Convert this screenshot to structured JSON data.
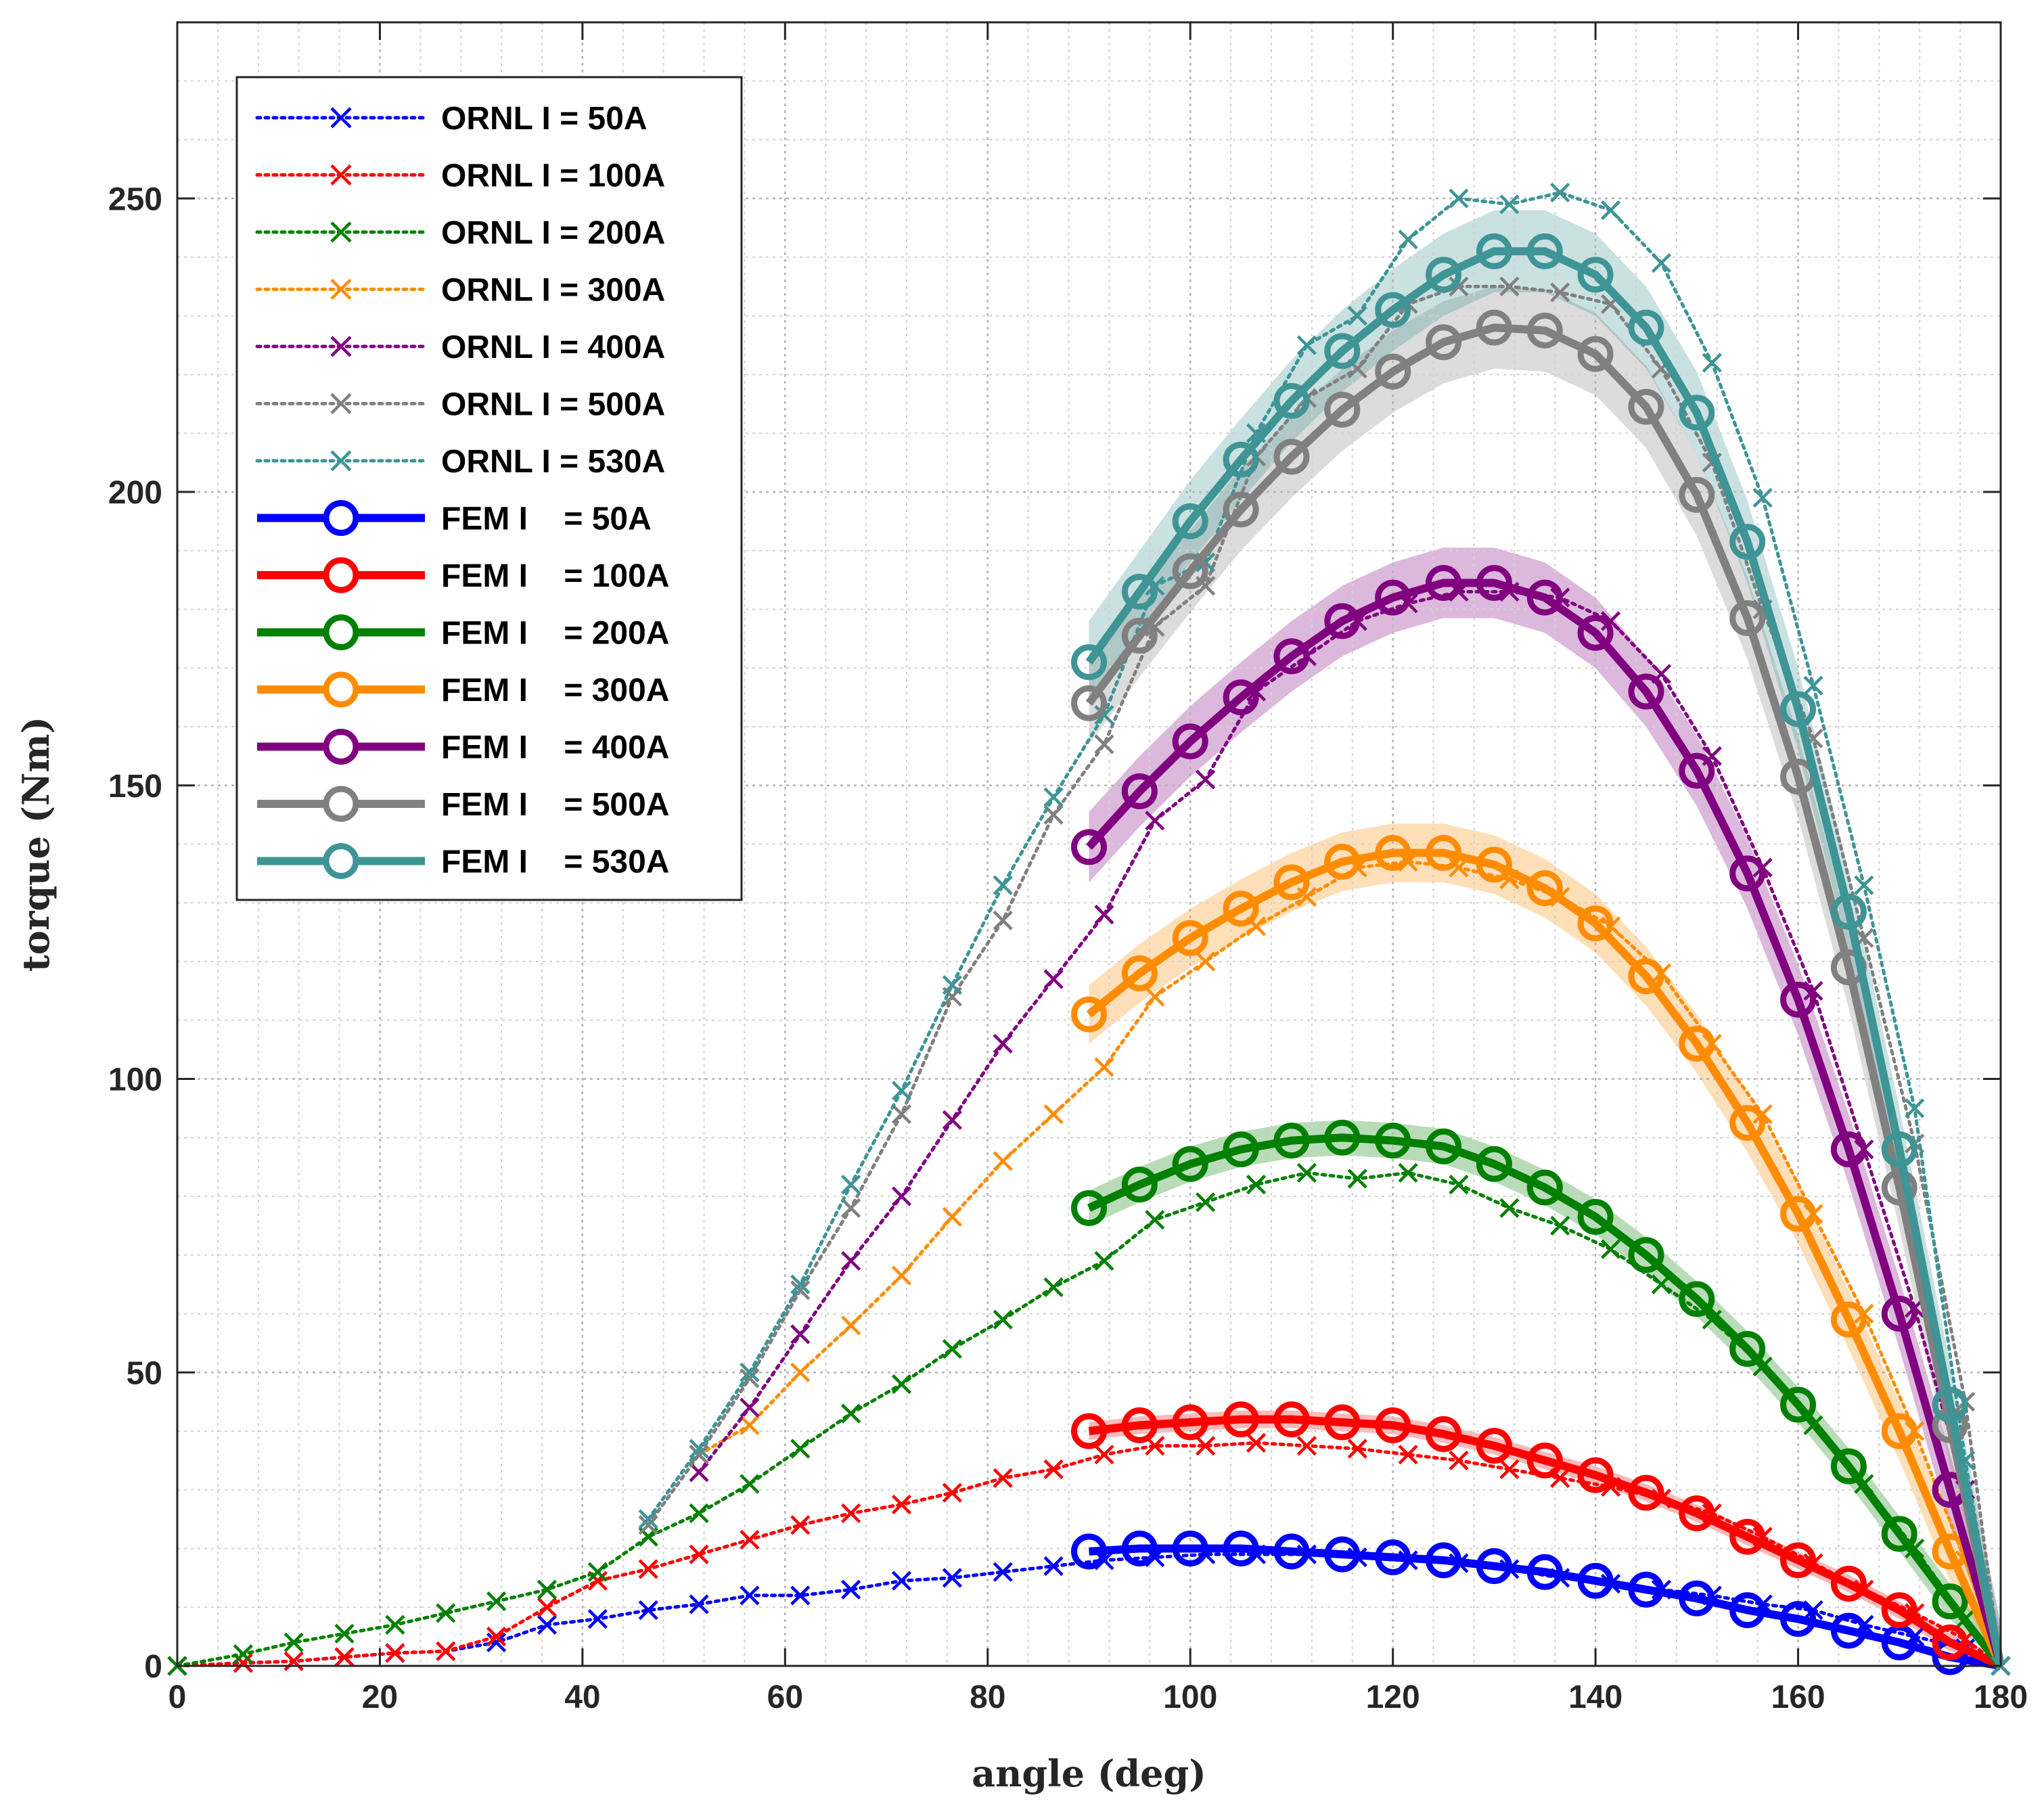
{
  "chart_data": {
    "type": "line",
    "xlabel": "angle (deg)",
    "ylabel": "torque (Nm)",
    "xlim": [
      0,
      180
    ],
    "ylim": [
      0,
      280
    ],
    "xticks": [
      0,
      20,
      40,
      60,
      80,
      100,
      120,
      140,
      160,
      180
    ],
    "yticks": [
      0,
      50,
      100,
      150,
      200,
      250
    ],
    "xtick_labels": [
      "0",
      "20",
      "40",
      "60",
      "80",
      "100",
      "120",
      "140",
      "160",
      "180"
    ],
    "ytick_labels": [
      "0",
      "50",
      "100",
      "150",
      "200",
      "250"
    ],
    "grid": true,
    "minor_grid": true,
    "legend_position": "top-left",
    "ornl_series": [
      {
        "name": "ORNL I = 50A",
        "color": "#0000ff",
        "x": [
          0,
          6.5,
          11.5,
          16.5,
          21.5,
          26.5,
          31.5,
          36.5,
          41.5,
          46.5,
          51.5,
          56.5,
          61.5,
          66.5,
          71.5,
          76.5,
          81.5,
          86.5,
          91.5,
          96.5,
          101.5,
          106.5,
          111.5,
          116.5,
          121.5,
          126.5,
          131.5,
          136.5,
          141.5,
          146.5,
          151.5,
          156.5,
          161.5,
          166.5,
          171.5,
          176.5,
          180
        ],
        "y": [
          0,
          0.5,
          0.8,
          1.5,
          2.2,
          2.5,
          4,
          7,
          8,
          9.5,
          10.5,
          12,
          12,
          13,
          14.5,
          15,
          16,
          17,
          18,
          18.5,
          19,
          19,
          19,
          18.5,
          18,
          17.5,
          16.5,
          15,
          14,
          13,
          12,
          10.5,
          9.5,
          7,
          5,
          3,
          0
        ]
      },
      {
        "name": "ORNL I = 100A",
        "color": "#ff0000",
        "x": [
          0,
          6.5,
          11.5,
          16.5,
          21.5,
          26.5,
          31.5,
          36.5,
          41.5,
          46.5,
          51.5,
          56.5,
          61.5,
          66.5,
          71.5,
          76.5,
          81.5,
          86.5,
          91.5,
          96.5,
          101.5,
          106.5,
          111.5,
          116.5,
          121.5,
          126.5,
          131.5,
          136.5,
          141.5,
          146.5,
          151.5,
          156.5,
          161.5,
          166.5,
          171.5,
          176.5,
          180
        ],
        "y": [
          0,
          0.5,
          0.8,
          1.5,
          2.2,
          2.5,
          5,
          10,
          14.5,
          16.5,
          19,
          21.5,
          24,
          26,
          27.5,
          29.5,
          32,
          33.5,
          36,
          37.5,
          37.5,
          38,
          37.5,
          37,
          36,
          35,
          33.5,
          32,
          30.5,
          28.5,
          26,
          22,
          17.5,
          13,
          9,
          4.5,
          0
        ]
      },
      {
        "name": "ORNL I = 200A",
        "color": "#008000",
        "x": [
          0,
          6.5,
          11.5,
          16.5,
          21.5,
          26.5,
          31.5,
          36.5,
          41.5,
          46.5,
          51.5,
          56.5,
          61.5,
          66.5,
          71.5,
          76.5,
          81.5,
          86.5,
          91.5,
          96.5,
          101.5,
          106.5,
          111.5,
          116.5,
          121.5,
          126.5,
          131.5,
          136.5,
          141.5,
          146.5,
          151.5,
          156.5,
          161.5,
          166.5,
          171.5,
          176.5,
          180
        ],
        "y": [
          0,
          2,
          4,
          5.5,
          7,
          9,
          11,
          13,
          16,
          22,
          26,
          31,
          37,
          43,
          48,
          54,
          59,
          64.5,
          69,
          76,
          79,
          82,
          84,
          83,
          84,
          82,
          78,
          75,
          71,
          65,
          59,
          51,
          41,
          31,
          20,
          8,
          0
        ]
      },
      {
        "name": "ORNL I = 300A",
        "color": "#ff8c00",
        "x": [
          51.5,
          56.5,
          61.5,
          66.5,
          71.5,
          76.5,
          81.5,
          86.5,
          91.5,
          96.5,
          101.5,
          106.5,
          111.5,
          116.5,
          121.5,
          126.5,
          131.5,
          136.5,
          141.5,
          146.5,
          151.5,
          156.5,
          161.5,
          166.5,
          171.5,
          176.5,
          180
        ],
        "y": [
          36,
          41,
          50,
          58,
          66.5,
          76.5,
          86,
          94,
          102,
          114,
          120,
          126,
          131,
          136,
          137,
          136,
          134,
          131,
          126,
          118,
          106,
          94,
          77,
          60,
          40,
          18,
          0
        ]
      },
      {
        "name": "ORNL I = 400A",
        "color": "#800080",
        "x": [
          51.5,
          56.5,
          61.5,
          66.5,
          71.5,
          76.5,
          81.5,
          86.5,
          91.5,
          96.5,
          101.5,
          106.5,
          111.5,
          116.5,
          121.5,
          126.5,
          131.5,
          136.5,
          141.5,
          146.5,
          151.5,
          156.5,
          161.5,
          166.5,
          171.5,
          176.5,
          180
        ],
        "y": [
          33,
          44,
          56.5,
          69,
          80,
          93,
          106,
          117,
          128,
          144,
          151,
          166,
          172,
          178,
          181,
          183,
          183,
          182,
          178,
          169,
          155,
          136,
          115,
          88,
          61,
          30,
          0
        ]
      },
      {
        "name": "ORNL I = 500A",
        "color": "#808080",
        "x": [
          46.5,
          51.5,
          56.5,
          61.5,
          66.5,
          71.5,
          76.5,
          81.5,
          86.5,
          91.5,
          96.5,
          101.5,
          106.5,
          111.5,
          116.5,
          121.5,
          126.5,
          131.5,
          136.5,
          141.5,
          146.5,
          151.5,
          156.5,
          161.5,
          166.5,
          171.5,
          176.5,
          180
        ],
        "y": [
          24,
          36,
          49,
          64,
          78,
          94,
          114,
          127,
          145,
          157,
          177,
          184,
          206,
          216,
          221,
          232,
          235,
          235,
          234,
          232,
          221,
          205,
          180,
          158,
          124,
          89,
          45,
          0
        ]
      },
      {
        "name": "ORNL I = 530A",
        "color": "#3f9495",
        "x": [
          46.5,
          51.5,
          56.5,
          61.5,
          66.5,
          71.5,
          76.5,
          81.5,
          86.5,
          91.5,
          96.5,
          101.5,
          106.5,
          111.5,
          116.5,
          121.5,
          126.5,
          131.5,
          136.5,
          141.5,
          146.5,
          151.5,
          156.5,
          161.5,
          166.5,
          171.5,
          176.5,
          180
        ],
        "y": [
          25,
          37,
          50,
          65,
          82,
          98,
          116,
          133,
          148,
          162,
          184,
          188,
          210,
          225,
          230,
          243,
          250,
          249,
          251,
          248,
          239,
          222,
          199,
          167,
          133,
          95,
          35,
          0
        ]
      }
    ],
    "fem_series": [
      {
        "name": "FEM I    = 50A",
        "color": "#0000ff",
        "band": 0,
        "x": [
          90,
          95,
          100,
          105,
          110,
          115,
          120,
          125,
          130,
          135,
          140,
          145,
          150,
          155,
          160,
          165,
          170,
          175,
          180
        ],
        "y": [
          19.5,
          20,
          20,
          20,
          19.5,
          19,
          18.5,
          18,
          17,
          16,
          14.5,
          13,
          11.5,
          9.5,
          8,
          6,
          4,
          1.5,
          0
        ]
      },
      {
        "name": "FEM I    = 100A",
        "color": "#ff0000",
        "band": 1.5,
        "x": [
          90,
          95,
          100,
          105,
          110,
          115,
          120,
          125,
          130,
          135,
          140,
          145,
          150,
          155,
          160,
          165,
          170,
          175,
          180
        ],
        "y": [
          40,
          41,
          41.5,
          42,
          42,
          41.5,
          41,
          39.5,
          37.5,
          35,
          32.5,
          29.5,
          26,
          22,
          18,
          14,
          9.5,
          4,
          0
        ]
      },
      {
        "name": "FEM I    = 200A",
        "color": "#008000",
        "band": 3,
        "x": [
          90,
          95,
          100,
          105,
          110,
          115,
          120,
          125,
          130,
          135,
          140,
          145,
          150,
          155,
          160,
          165,
          170,
          175,
          180
        ],
        "y": [
          78,
          82,
          85.5,
          88,
          89.5,
          90,
          89.5,
          88.5,
          85.5,
          81.5,
          76.5,
          70,
          62.5,
          54,
          44.5,
          34,
          22.5,
          11,
          0
        ]
      },
      {
        "name": "FEM I    = 300A",
        "color": "#ff8c00",
        "band": 5,
        "x": [
          90,
          95,
          100,
          105,
          110,
          115,
          120,
          125,
          130,
          135,
          140,
          145,
          150,
          155,
          160,
          165,
          170,
          175,
          180
        ],
        "y": [
          111,
          118,
          124,
          129,
          133.5,
          137,
          138.5,
          138.5,
          136.5,
          132.5,
          126.5,
          117.5,
          106,
          92.5,
          77,
          59,
          40,
          19.5,
          0
        ]
      },
      {
        "name": "FEM I    = 400A",
        "color": "#800080",
        "band": 6,
        "x": [
          90,
          95,
          100,
          105,
          110,
          115,
          120,
          125,
          130,
          135,
          140,
          145,
          150,
          155,
          160,
          165,
          170,
          175,
          180
        ],
        "y": [
          139.5,
          149,
          157.5,
          165,
          172,
          178,
          182,
          184.5,
          184.5,
          182,
          176,
          166,
          152.5,
          135,
          113.5,
          88,
          60,
          30,
          0
        ]
      },
      {
        "name": "FEM I    = 500A",
        "color": "#808080",
        "band": 7,
        "x": [
          90,
          95,
          100,
          105,
          110,
          115,
          120,
          125,
          130,
          135,
          140,
          145,
          150,
          155,
          160,
          165,
          170,
          175,
          180
        ],
        "y": [
          164,
          175.5,
          186.5,
          197,
          206,
          214,
          220.5,
          225.5,
          228,
          227.5,
          223.5,
          214.5,
          199.5,
          178.5,
          151.5,
          119,
          81.5,
          41,
          0
        ]
      },
      {
        "name": "FEM I    = 530A",
        "color": "#3f9495",
        "band": 7,
        "x": [
          90,
          95,
          100,
          105,
          110,
          115,
          120,
          125,
          130,
          135,
          140,
          145,
          150,
          155,
          160,
          165,
          170,
          175,
          180
        ],
        "y": [
          171,
          183,
          195,
          205.5,
          215.5,
          224,
          231,
          237,
          241,
          241,
          237,
          228,
          213.5,
          191.5,
          163,
          128.5,
          88,
          44.5,
          0
        ]
      }
    ]
  }
}
